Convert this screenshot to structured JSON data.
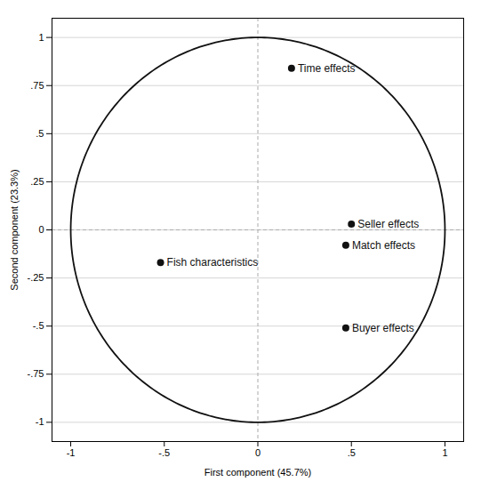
{
  "chart_data": {
    "type": "scatter",
    "xlabel": "First component (45.7%)",
    "ylabel": "Second component (23.3%)",
    "labels": [
      "Time effects",
      "Seller effects",
      "Match effects",
      "Fish characteristics",
      "Buyer effects"
    ],
    "x": [
      0.18,
      0.5,
      0.47,
      -0.52,
      0.47
    ],
    "values": [
      0.84,
      0.03,
      -0.08,
      -0.17,
      -0.51
    ],
    "color": "#111111",
    "xlim": [
      -1.1,
      1.1
    ],
    "ylim": [
      -1.1,
      1.1
    ],
    "xticks": [
      -1,
      {
        "value": -0.5,
        "label": "-.5"
      },
      0,
      {
        "value": 0.5,
        "label": ".5"
      },
      1
    ],
    "yticks": [
      -1,
      {
        "value": -0.75,
        "label": "-.75"
      },
      {
        "value": -0.5,
        "label": "-.5"
      },
      {
        "value": -0.25,
        "label": "-.25"
      },
      0,
      {
        "value": 0.25,
        "label": ".25"
      },
      {
        "value": 0.5,
        "label": ".5"
      },
      {
        "value": 0.75,
        "label": ".75"
      },
      1
    ],
    "grid": "y",
    "circle": {
      "x": 0,
      "y": 0,
      "r": 1
    }
  }
}
